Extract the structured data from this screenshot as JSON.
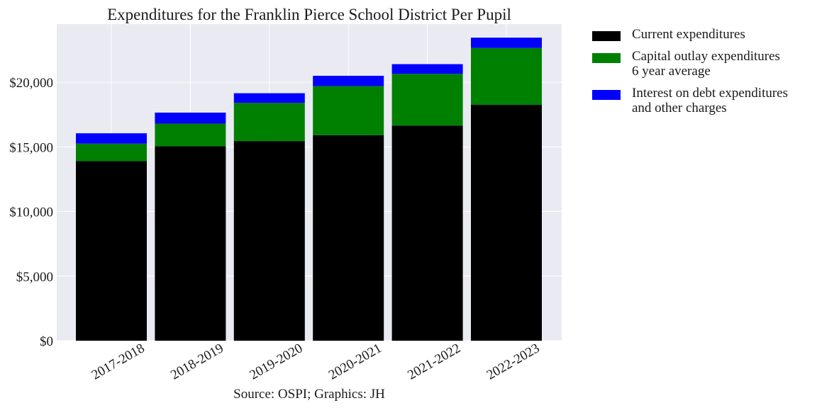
{
  "chart_data": {
    "type": "bar",
    "stacked": true,
    "title": "Expenditures for the Franklin Pierce School District Per Pupil",
    "xlabel": "Source: OSPI; Graphics: JH",
    "ylabel": "",
    "categories": [
      "2017-2018",
      "2018-2019",
      "2019-2020",
      "2020-2021",
      "2021-2022",
      "2022-2023"
    ],
    "series": [
      {
        "name": "Current expenditures",
        "color": "#000000",
        "values": [
          13900,
          15050,
          15450,
          15900,
          16650,
          18250
        ]
      },
      {
        "name": "Capital outlay expenditures\n6 year average",
        "color": "#008000",
        "values": [
          1350,
          1750,
          2950,
          3800,
          4000,
          4400
        ]
      },
      {
        "name": "Interest on debt expenditures\nand other charges",
        "color": "#0000ff",
        "values": [
          800,
          850,
          750,
          800,
          750,
          800
        ]
      }
    ],
    "yticks": [
      0,
      5000,
      10000,
      15000,
      20000
    ],
    "ytick_labels": [
      "$0",
      "$5,000",
      "$10,000",
      "$15,000",
      "$20,000"
    ],
    "ylim": [
      0,
      24500
    ],
    "grid": true,
    "legend_position": "outside-right",
    "background_color": "#eaeaf2"
  }
}
